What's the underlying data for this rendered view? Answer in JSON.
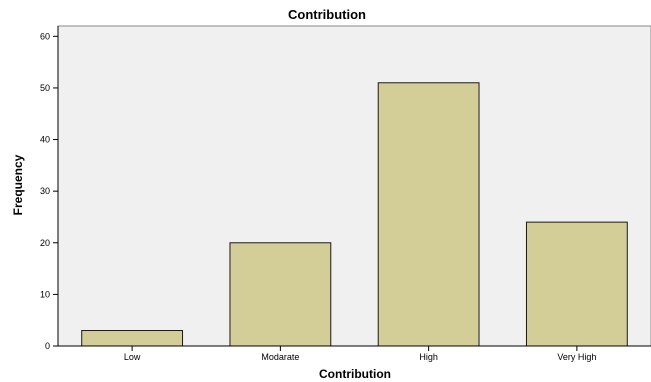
{
  "chart_data": {
    "type": "bar",
    "title": "Contribution",
    "xlabel": "Contribution",
    "ylabel": "Frequency",
    "categories": [
      "Low",
      "Modarate",
      "High",
      "Very High"
    ],
    "values": [
      3,
      20,
      51,
      24
    ],
    "ylim": [
      0,
      62
    ],
    "yticks": [
      "0",
      "10",
      "20",
      "30",
      "40",
      "50",
      "60"
    ],
    "grid": false,
    "legend": "none"
  },
  "colors": {
    "bar_fill": "#d3ce98",
    "bar_stroke": "#1a1a1a",
    "plot_bg": "#f0f0f0",
    "axis": "#000000"
  }
}
